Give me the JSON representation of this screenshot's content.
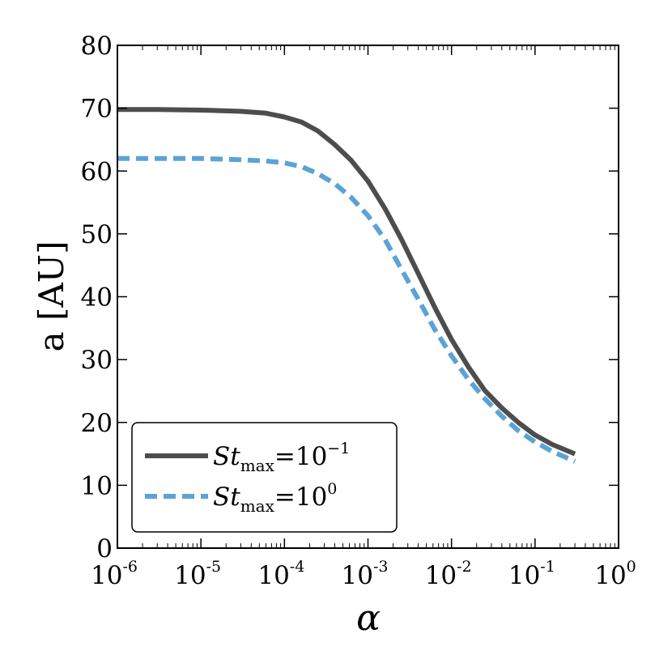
{
  "chart_data": {
    "type": "line",
    "title": "",
    "xlabel": "α",
    "ylabel": "a [AU]",
    "xscale": "log",
    "xlim": [
      1e-06,
      1
    ],
    "ylim": [
      0,
      80
    ],
    "grid": false,
    "legend_position": "lower-left",
    "x_ticks": [
      {
        "base": "10",
        "exp": "-6"
      },
      {
        "base": "10",
        "exp": "-5"
      },
      {
        "base": "10",
        "exp": "-4"
      },
      {
        "base": "10",
        "exp": "-3"
      },
      {
        "base": "10",
        "exp": "-2"
      },
      {
        "base": "10",
        "exp": "-1"
      },
      {
        "base": "10",
        "exp": "0"
      }
    ],
    "y_ticks": [
      "0",
      "10",
      "20",
      "30",
      "40",
      "50",
      "60",
      "70",
      "80"
    ],
    "series": [
      {
        "legend_base": "St",
        "legend_sub": "max",
        "legend_eq": "=10",
        "legend_exp": "−1",
        "color": "#4d4d4d",
        "style": "solid",
        "x": [
          1e-06,
          3e-06,
          1e-05,
          3e-05,
          6e-05,
          0.0001,
          0.00016,
          0.00025,
          0.0004,
          0.00063,
          0.001,
          0.0016,
          0.0025,
          0.004,
          0.0063,
          0.01,
          0.016,
          0.025,
          0.04,
          0.063,
          0.1,
          0.16,
          0.3
        ],
        "y": [
          69.8,
          69.8,
          69.7,
          69.5,
          69.2,
          68.6,
          67.8,
          66.4,
          64.2,
          61.7,
          58.4,
          54.0,
          49.2,
          43.7,
          38.3,
          33.2,
          28.8,
          25.1,
          22.3,
          20.0,
          18.0,
          16.5,
          15.0
        ]
      },
      {
        "legend_base": "St",
        "legend_sub": "max",
        "legend_eq": "=10",
        "legend_exp": "0",
        "color": "#5ba3d6",
        "style": "dashed",
        "x": [
          1e-06,
          3e-06,
          1e-05,
          3e-05,
          6e-05,
          0.0001,
          0.00016,
          0.00025,
          0.0004,
          0.00063,
          0.001,
          0.0016,
          0.0025,
          0.004,
          0.0063,
          0.01,
          0.016,
          0.025,
          0.04,
          0.063,
          0.1,
          0.16,
          0.3
        ],
        "y": [
          62.0,
          62.0,
          62.0,
          61.8,
          61.6,
          61.3,
          60.7,
          59.6,
          58.0,
          55.8,
          52.9,
          49.1,
          44.4,
          39.6,
          34.8,
          30.6,
          26.8,
          23.8,
          21.0,
          18.7,
          16.9,
          15.4,
          13.8
        ]
      }
    ]
  }
}
